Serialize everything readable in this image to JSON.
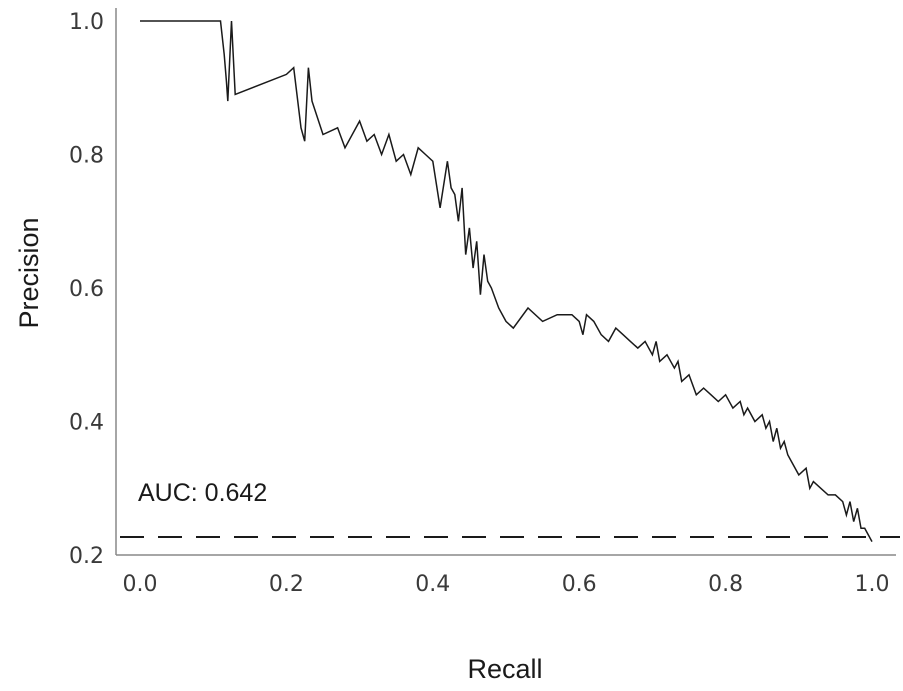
{
  "chart_data": {
    "type": "line",
    "title": "",
    "xlabel": "Recall",
    "ylabel": "Precision",
    "xlim": [
      0.0,
      1.0
    ],
    "ylim": [
      0.2,
      1.0
    ],
    "xticks": [
      "0.0",
      "0.2",
      "0.4",
      "0.6",
      "0.8",
      "1.0"
    ],
    "yticks": [
      "0.2",
      "0.4",
      "0.6",
      "0.8",
      "1.0"
    ],
    "grid": false,
    "line_color": "#1a1a1a",
    "annotation": "AUC: 0.642",
    "baseline": {
      "y": 0.227,
      "style": "dashed"
    },
    "series": [
      {
        "x": [
          0.0,
          0.1,
          0.11,
          0.115,
          0.118,
          0.12,
          0.125,
          0.13,
          0.2,
          0.21,
          0.22,
          0.225,
          0.23,
          0.235,
          0.25,
          0.27,
          0.28,
          0.3,
          0.31,
          0.32,
          0.33,
          0.34,
          0.35,
          0.36,
          0.37,
          0.38,
          0.39,
          0.4,
          0.41,
          0.42,
          0.425,
          0.43,
          0.435,
          0.44,
          0.445,
          0.45,
          0.455,
          0.46,
          0.465,
          0.47,
          0.475,
          0.48,
          0.49,
          0.5,
          0.51,
          0.53,
          0.55,
          0.57,
          0.59,
          0.6,
          0.605,
          0.61,
          0.62,
          0.63,
          0.64,
          0.65,
          0.66,
          0.67,
          0.68,
          0.69,
          0.7,
          0.705,
          0.71,
          0.72,
          0.73,
          0.735,
          0.74,
          0.75,
          0.76,
          0.77,
          0.78,
          0.79,
          0.8,
          0.81,
          0.82,
          0.825,
          0.83,
          0.84,
          0.85,
          0.855,
          0.86,
          0.865,
          0.87,
          0.875,
          0.88,
          0.885,
          0.89,
          0.9,
          0.91,
          0.915,
          0.92,
          0.93,
          0.94,
          0.95,
          0.96,
          0.965,
          0.97,
          0.975,
          0.98,
          0.985,
          0.99,
          1.0
        ],
        "y": [
          1.0,
          1.0,
          1.0,
          0.95,
          0.91,
          0.88,
          1.0,
          0.89,
          0.92,
          0.93,
          0.84,
          0.82,
          0.93,
          0.88,
          0.83,
          0.84,
          0.81,
          0.85,
          0.82,
          0.83,
          0.8,
          0.83,
          0.79,
          0.8,
          0.77,
          0.81,
          0.8,
          0.79,
          0.72,
          0.79,
          0.75,
          0.74,
          0.7,
          0.75,
          0.65,
          0.69,
          0.63,
          0.67,
          0.59,
          0.65,
          0.61,
          0.6,
          0.57,
          0.55,
          0.54,
          0.57,
          0.55,
          0.56,
          0.56,
          0.55,
          0.53,
          0.56,
          0.55,
          0.53,
          0.52,
          0.54,
          0.53,
          0.52,
          0.51,
          0.52,
          0.5,
          0.52,
          0.49,
          0.5,
          0.48,
          0.49,
          0.46,
          0.47,
          0.44,
          0.45,
          0.44,
          0.43,
          0.44,
          0.42,
          0.43,
          0.41,
          0.42,
          0.4,
          0.41,
          0.39,
          0.4,
          0.37,
          0.39,
          0.36,
          0.37,
          0.35,
          0.34,
          0.32,
          0.33,
          0.3,
          0.31,
          0.3,
          0.29,
          0.29,
          0.28,
          0.26,
          0.28,
          0.25,
          0.27,
          0.24,
          0.24,
          0.22
        ]
      }
    ]
  }
}
